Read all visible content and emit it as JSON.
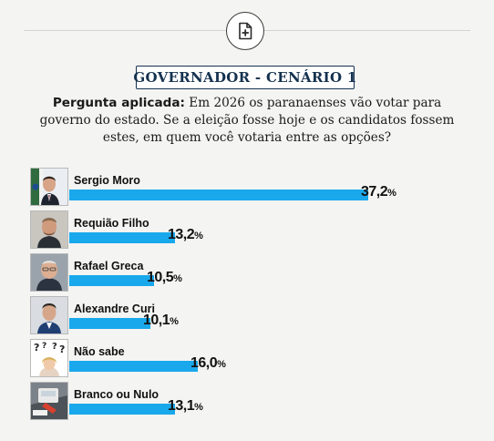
{
  "icons": {
    "badge": "document-plus-icon"
  },
  "colors": {
    "bar": "#1aa8ec",
    "title": "#15324f"
  },
  "chart_data": {
    "type": "bar",
    "orientation": "horizontal",
    "title": "GOVERNADOR - CENÁRIO 1",
    "question_label": "Pergunta aplicada:",
    "question_text": " Em 2026 os paranaenses vão votar para governo do estado. Se a eleição fosse hoje e os candidatos fossem estes, em quem você votaria entre as opções?",
    "categories": [
      "Sergio Moro",
      "Requião Filho",
      "Rafael Greca",
      "Alexandre Curi",
      "Não sabe",
      "Branco ou Nulo"
    ],
    "values": [
      37.2,
      13.2,
      10.5,
      10.1,
      16.0,
      13.1
    ],
    "value_labels": [
      "37,2",
      "13,2",
      "10,5",
      "10,1",
      "16,0",
      "13,1"
    ],
    "unit": "%",
    "xlim": [
      0,
      40
    ]
  }
}
